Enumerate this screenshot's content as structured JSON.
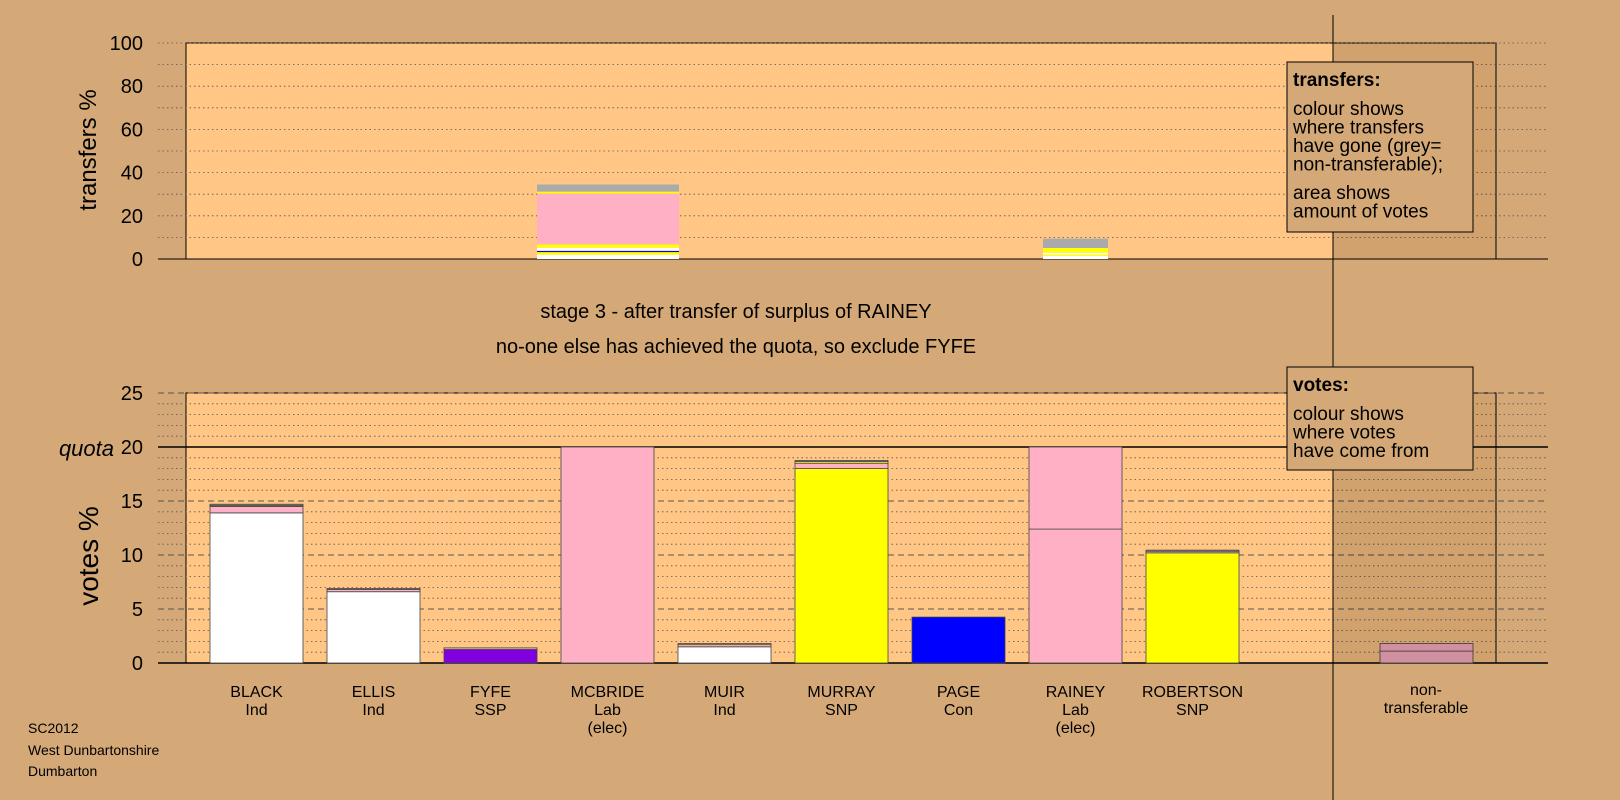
{
  "chart_data": [
    {
      "type": "bar",
      "stacked": true,
      "ylabel": "transfers %",
      "ylim": [
        0,
        100
      ],
      "yticks": [
        0,
        20,
        40,
        60,
        80,
        100
      ],
      "grid": "dotted every 10",
      "columns": [
        {
          "category": "MCBRIDE",
          "segments": [
            {
              "color": "#ffffff",
              "value": 2
            },
            {
              "color": "#ffff00",
              "value": 1.2
            },
            {
              "color": "#0000ff",
              "value": 0.6
            },
            {
              "color": "#ffffff",
              "value": 1.4
            },
            {
              "color": "#ffff00",
              "value": 1.5
            },
            {
              "color": "#ffb0c4",
              "value": 23.6
            },
            {
              "color": "#ffff00",
              "value": 0.9
            },
            {
              "color": "#aaaaaa",
              "value": 3.3
            }
          ]
        },
        {
          "category": "RAINEY",
          "segments": [
            {
              "color": "#ffffff",
              "value": 1.5
            },
            {
              "color": "#ffff00",
              "value": 0.6
            },
            {
              "color": "#ffffff",
              "value": 0.8
            },
            {
              "color": "#ffff00",
              "value": 2.2
            },
            {
              "color": "#aaaaaa",
              "value": 4.3
            }
          ]
        }
      ],
      "legend": {
        "title": "transfers:",
        "lines1": [
          "colour shows",
          "where transfers",
          "have gone (grey=",
          "non-transferable);"
        ],
        "lines2": [
          "area shows",
          "amount of votes"
        ]
      }
    },
    {
      "type": "bar",
      "stacked": true,
      "ylabel": "votes %",
      "ylim": [
        0,
        25
      ],
      "yticks": [
        0,
        5,
        10,
        15,
        20,
        25
      ],
      "quota": 20,
      "quota_label": "quota",
      "grid": "dashed every 5, dotted every 1",
      "candidates": [
        {
          "name": "BLACK",
          "party": "Ind",
          "note": "",
          "segments": [
            {
              "color": "#ffffff",
              "value": 13.9
            },
            {
              "color": "#ffb0c4",
              "value": 0.6
            },
            {
              "color": "#ffff00",
              "value": 0.1
            },
            {
              "color": "#aaaaaa",
              "value": 0.1
            }
          ]
        },
        {
          "name": "ELLIS",
          "party": "Ind",
          "note": "",
          "segments": [
            {
              "color": "#ffffff",
              "value": 6.6
            },
            {
              "color": "#ffb0c4",
              "value": 0.2
            },
            {
              "color": "#aaaaaa",
              "value": 0.1
            }
          ]
        },
        {
          "name": "FYFE",
          "party": "SSP",
          "note": "",
          "segments": [
            {
              "color": "#8000e0",
              "value": 1.25
            },
            {
              "color": "#ffb0c4",
              "value": 0.15
            }
          ]
        },
        {
          "name": "MCBRIDE",
          "party": "Lab",
          "note": "(elec)",
          "segments": [
            {
              "color": "#ffb0c4",
              "value": 20
            }
          ]
        },
        {
          "name": "MUIR",
          "party": "Ind",
          "note": "",
          "segments": [
            {
              "color": "#ffffff",
              "value": 1.5
            },
            {
              "color": "#ffb0c4",
              "value": 0.2
            },
            {
              "color": "#ffff00",
              "value": 0.1
            }
          ]
        },
        {
          "name": "MURRAY",
          "party": "SNP",
          "note": "",
          "segments": [
            {
              "color": "#ffff00",
              "value": 18.0
            },
            {
              "color": "#ffb0c4",
              "value": 0.5
            },
            {
              "color": "#ffff00",
              "value": 0.15
            },
            {
              "color": "#aaaaaa",
              "value": 0.1
            }
          ]
        },
        {
          "name": "PAGE",
          "party": "Con",
          "note": "",
          "segments": [
            {
              "color": "#0000ff",
              "value": 4.25
            }
          ]
        },
        {
          "name": "RAINEY",
          "party": "Lab",
          "note": "(elec)",
          "segments": [
            {
              "color": "#ffb0c4",
              "value": 12.4
            },
            {
              "color": "#ffb0c4",
              "value": 7.6
            }
          ]
        },
        {
          "name": "ROBERTSON",
          "party": "SNP",
          "note": "",
          "segments": [
            {
              "color": "#ffff00",
              "value": 10.2
            },
            {
              "color": "#ffb0c4",
              "value": 0.15
            },
            {
              "color": "#aaaaaa",
              "value": 0.1
            }
          ]
        }
      ],
      "nontransferable": {
        "label_lines": [
          "non-",
          "transferable"
        ],
        "segments": [
          {
            "color": "#ffb0c4",
            "value": 1.1
          },
          {
            "color": "#ffb0c4",
            "value": 0.7
          }
        ]
      },
      "legend": {
        "title": "votes:",
        "lines": [
          "colour shows",
          "where votes",
          "have come from"
        ]
      }
    }
  ],
  "stage_text": "stage 3 - after transfer of surplus of RAINEY",
  "exclude_text": "no-one else has achieved the quota, so exclude FYFE",
  "footer": [
    "SC2012",
    "West Dunbartonshire",
    "Dumbarton"
  ]
}
